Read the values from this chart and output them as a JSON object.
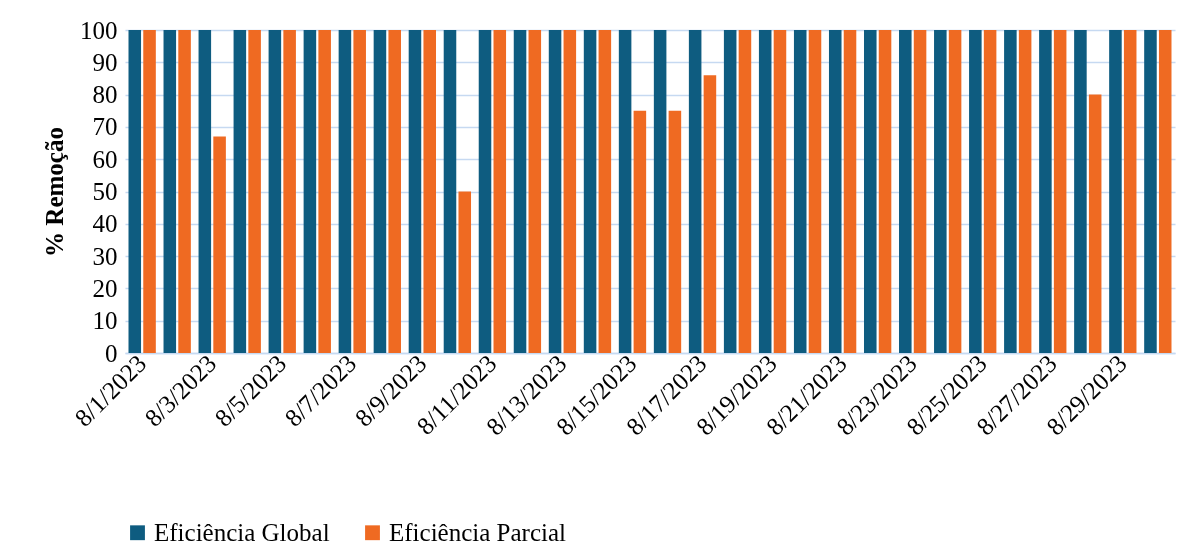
{
  "chart_data": {
    "type": "bar",
    "ylabel": "% Remoção",
    "categories": [
      "8/1/2023",
      null,
      "8/3/2023",
      null,
      "8/5/2023",
      null,
      "8/7/2023",
      null,
      "8/9/2023",
      null,
      "8/11/2023",
      null,
      "8/13/2023",
      null,
      "8/15/2023",
      null,
      "8/17/2023",
      null,
      "8/19/2023",
      null,
      "8/21/2023",
      null,
      "8/23/2023",
      null,
      "8/25/2023",
      null,
      "8/27/2023",
      null,
      "8/29/2023",
      null
    ],
    "series": [
      {
        "name": "Eficiência Global",
        "color": "#0e5c80",
        "values": [
          100,
          100,
          100,
          100,
          100,
          100,
          100,
          100,
          100,
          100,
          100,
          100,
          100,
          100,
          100,
          100,
          100,
          100,
          100,
          100,
          100,
          100,
          100,
          100,
          100,
          100,
          100,
          100,
          100,
          100
        ]
      },
      {
        "name": "Eficiência Parcial",
        "color": "#ef6a22",
        "values": [
          100,
          100,
          67,
          100,
          100,
          100,
          100,
          100,
          100,
          50,
          100,
          100,
          100,
          100,
          75,
          75,
          86,
          100,
          100,
          100,
          100,
          100,
          100,
          100,
          100,
          100,
          100,
          80,
          100,
          100
        ]
      }
    ],
    "ylim": [
      0,
      100
    ],
    "yticks": [
      0,
      10,
      20,
      30,
      40,
      50,
      60,
      70,
      80,
      90,
      100
    ],
    "grid": "y",
    "legend": "bottom"
  }
}
